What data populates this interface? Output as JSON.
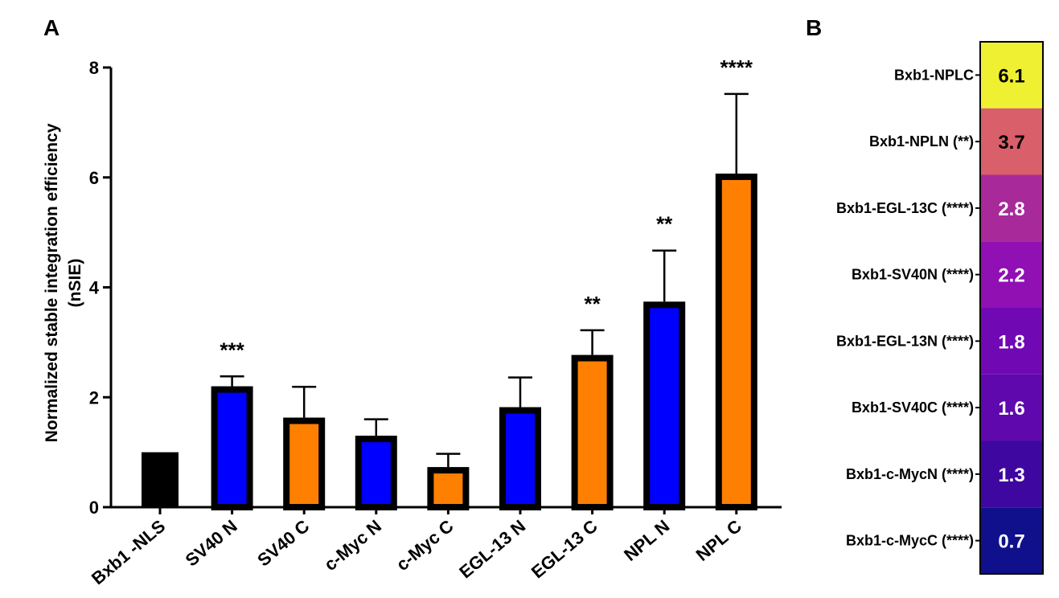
{
  "panel_a": {
    "letter": "A",
    "ylabel_line1": "Normalized stable integration efficiency",
    "ylabel_line2": "(nSIE)"
  },
  "panel_b": {
    "letter": "B"
  },
  "colors": {
    "black": "#000000",
    "blue": "#0000ff",
    "orange": "#ff8000"
  },
  "chart_data": [
    {
      "type": "bar",
      "title": "",
      "xlabel": "",
      "ylabel": "Normalized stable integration efficiency (nSIE)",
      "ylim": [
        0,
        8
      ],
      "yticks": [
        0,
        2,
        4,
        6,
        8
      ],
      "grid": false,
      "categories": [
        "Bxb1 -NLS",
        "SV40 N",
        "SV40 C",
        "c-Myc N",
        "c-Myc C",
        "EGL-13 N",
        "EGL-13 C",
        "NPL N",
        "NPL C"
      ],
      "values": [
        1.0,
        2.2,
        1.63,
        1.3,
        0.73,
        1.82,
        2.77,
        3.74,
        6.07
      ],
      "error": [
        0,
        0.18,
        0.56,
        0.3,
        0.24,
        0.54,
        0.45,
        0.93,
        1.45
      ],
      "significance": [
        "",
        "***",
        "",
        "",
        "",
        "",
        "**",
        "**",
        "****"
      ],
      "bar_colors": [
        "black",
        "blue",
        "orange",
        "blue",
        "orange",
        "blue",
        "orange",
        "blue",
        "orange"
      ]
    },
    {
      "type": "heatmap",
      "title": "",
      "rows": [
        "Bxb1-NPLC",
        "Bxb1-NPLN (**)",
        "Bxb1-EGL-13C (****)",
        "Bxb1-SV40N (****)",
        "Bxb1-EGL-13N (****)",
        "Bxb1-SV40C (****)",
        "Bxb1-c-MycN (****)",
        "Bxb1-c-MycC (****)"
      ],
      "values": [
        6.1,
        3.7,
        2.8,
        2.2,
        1.8,
        1.6,
        1.3,
        0.7
      ],
      "labels": [
        "6.1",
        "3.7",
        "2.8",
        "2.2",
        "1.8",
        "1.6",
        "1.3",
        "0.7"
      ],
      "cell_colors": [
        "#f0f032",
        "#d95f6a",
        "#a8299a",
        "#9010b4",
        "#7008b4",
        "#5e08ae",
        "#3e08a0",
        "#10108c"
      ]
    }
  ]
}
